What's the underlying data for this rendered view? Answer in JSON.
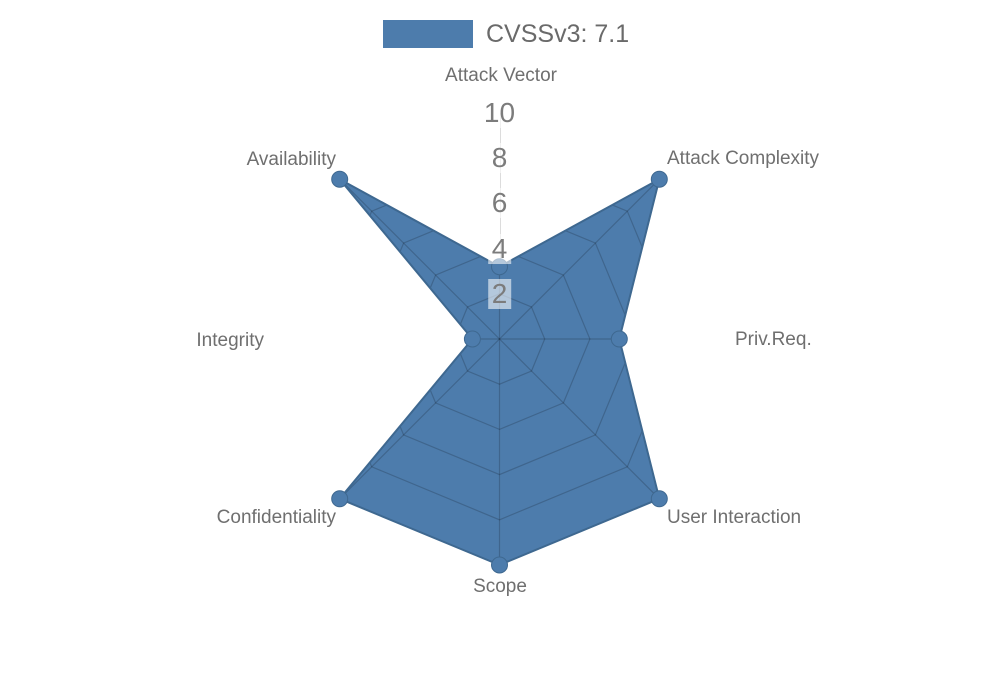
{
  "legend": {
    "label": "CVSSv3: 7.1"
  },
  "chart_data": {
    "type": "radar",
    "title": "",
    "legend_entries": [
      "CVSSv3: 7.1"
    ],
    "legend_position": "top-center",
    "categories": [
      "Attack Vector",
      "Attack Complexity",
      "Priv.Req.",
      "User Interaction",
      "Scope",
      "Confidentiality",
      "Integrity",
      "Availability"
    ],
    "series": [
      {
        "name": "CVSSv3: 7.1",
        "values": [
          3.2,
          10,
          5.3,
          10,
          10,
          10,
          1.2,
          10
        ]
      }
    ],
    "radial_axis": {
      "ticks": [
        2,
        4,
        6,
        8,
        10
      ],
      "range": [
        0,
        10
      ]
    },
    "grid": "polygon-web-visible-inside-fill",
    "colors": {
      "fill": "#4d7cac",
      "border": "#3e6890",
      "grid_line": "rgba(0,0,0,0.18)",
      "axis_line": "#dcdcdc",
      "label_text": "#6f6f6f",
      "tick_text": "#7c7c7c",
      "legend_text": "#6a6a6a"
    }
  }
}
